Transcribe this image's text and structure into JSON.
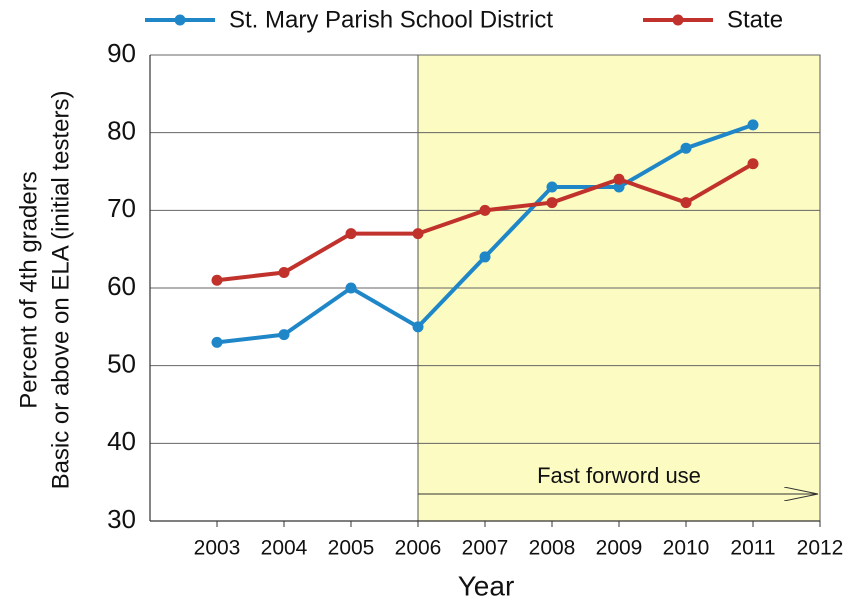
{
  "chart_data": {
    "type": "line",
    "x": [
      2003,
      2004,
      2005,
      2006,
      2007,
      2008,
      2009,
      2010,
      2011
    ],
    "series": [
      {
        "name": "St. Mary Parish School District",
        "color": "#1f87c8",
        "values": [
          53,
          54,
          60,
          55,
          64,
          73,
          73,
          78,
          81
        ]
      },
      {
        "name": "State",
        "color": "#c0322b",
        "values": [
          61,
          62,
          67,
          67,
          70,
          71,
          74,
          71,
          76
        ]
      }
    ],
    "xlabel": "Year",
    "ylabel": [
      "Percent of 4th graders",
      "Basic or above on ELA (initial testers)"
    ],
    "xlim": [
      2002,
      2012
    ],
    "xticks": [
      2003,
      2004,
      2005,
      2006,
      2007,
      2008,
      2009,
      2010,
      2011,
      2012
    ],
    "ylim": [
      30,
      90
    ],
    "yticks": [
      30,
      40,
      50,
      60,
      70,
      80,
      90
    ],
    "grid": true,
    "legend": "top",
    "shaded_region": {
      "range": [
        2006,
        2012
      ],
      "color": "#fbfbc2",
      "annotation": "Fast forword use"
    }
  }
}
